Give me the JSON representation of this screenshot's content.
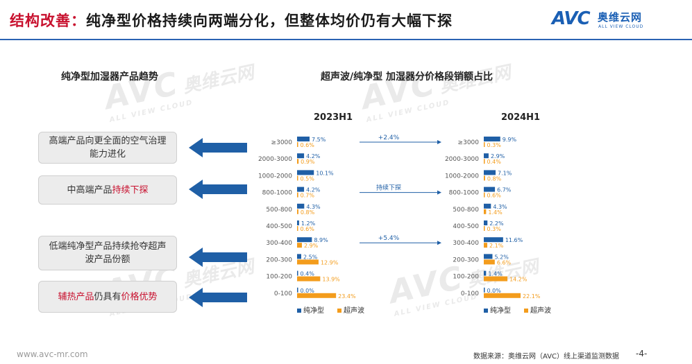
{
  "header": {
    "title_highlight": "结构改善：",
    "title_rest": "纯净型价格持续向两端分化，但整体均价仍有大幅下探",
    "logo_mark": "AVC",
    "logo_cn": "奥维云网",
    "logo_en": "ALL VIEW CLOUD"
  },
  "watermark": {
    "mark": "AVC",
    "cn": "奥维云网",
    "en": "ALL VIEW CLOUD"
  },
  "left": {
    "title": "纯净型加湿器产品趋势",
    "boxes": [
      {
        "text": "高端产品向更全面的空气治理能力进化"
      },
      {
        "pre": "中高端产品",
        "hl": "持续下探"
      },
      {
        "text": "低端纯净型产品持续抢夺超声波产品份额"
      },
      {
        "hl1": "辅热产品",
        "mid": "仍具有",
        "hl2": "价格优势"
      }
    ]
  },
  "right_title": "超声波/纯净型 加湿器分价格段销额占比",
  "chart_data": {
    "type": "bar",
    "categories": [
      "≥3000",
      "2000-3000",
      "1000-2000",
      "800-1000",
      "500-800",
      "400-500",
      "300-400",
      "200-300",
      "100-200",
      "0-100"
    ],
    "panels": [
      {
        "title": "2023H1",
        "series": [
          {
            "name": "纯净型",
            "color": "#1f5fa6",
            "values": [
              7.5,
              4.2,
              10.1,
              4.2,
              4.3,
              1.2,
              8.9,
              2.5,
              0.4,
              0.0
            ]
          },
          {
            "name": "超声波",
            "color": "#f39c1c",
            "values": [
              0.6,
              0.9,
              0.5,
              0.7,
              0.8,
              0.6,
              2.9,
              12.9,
              13.9,
              23.4
            ]
          }
        ]
      },
      {
        "title": "2024H1",
        "series": [
          {
            "name": "纯净型",
            "color": "#1f5fa6",
            "values": [
              9.9,
              2.9,
              7.1,
              6.7,
              4.3,
              2.2,
              11.6,
              5.2,
              1.4,
              0.0
            ]
          },
          {
            "name": "超声波",
            "color": "#f39c1c",
            "values": [
              0.3,
              0.4,
              0.8,
              0.6,
              1.4,
              0.3,
              2.1,
              6.6,
              14.2,
              22.1
            ]
          }
        ]
      }
    ],
    "annotations": [
      {
        "text": "+2.4%",
        "row": 0
      },
      {
        "text": "持续下探",
        "row": 3
      },
      {
        "text": "+5.4%",
        "row": 6
      }
    ],
    "legend": [
      "纯净型",
      "超声波"
    ]
  },
  "footer": {
    "url": "www.avc-mr.com",
    "source": "数据来源：奥维云网（AVC）线上渠道监测数据",
    "page": "-4-"
  }
}
